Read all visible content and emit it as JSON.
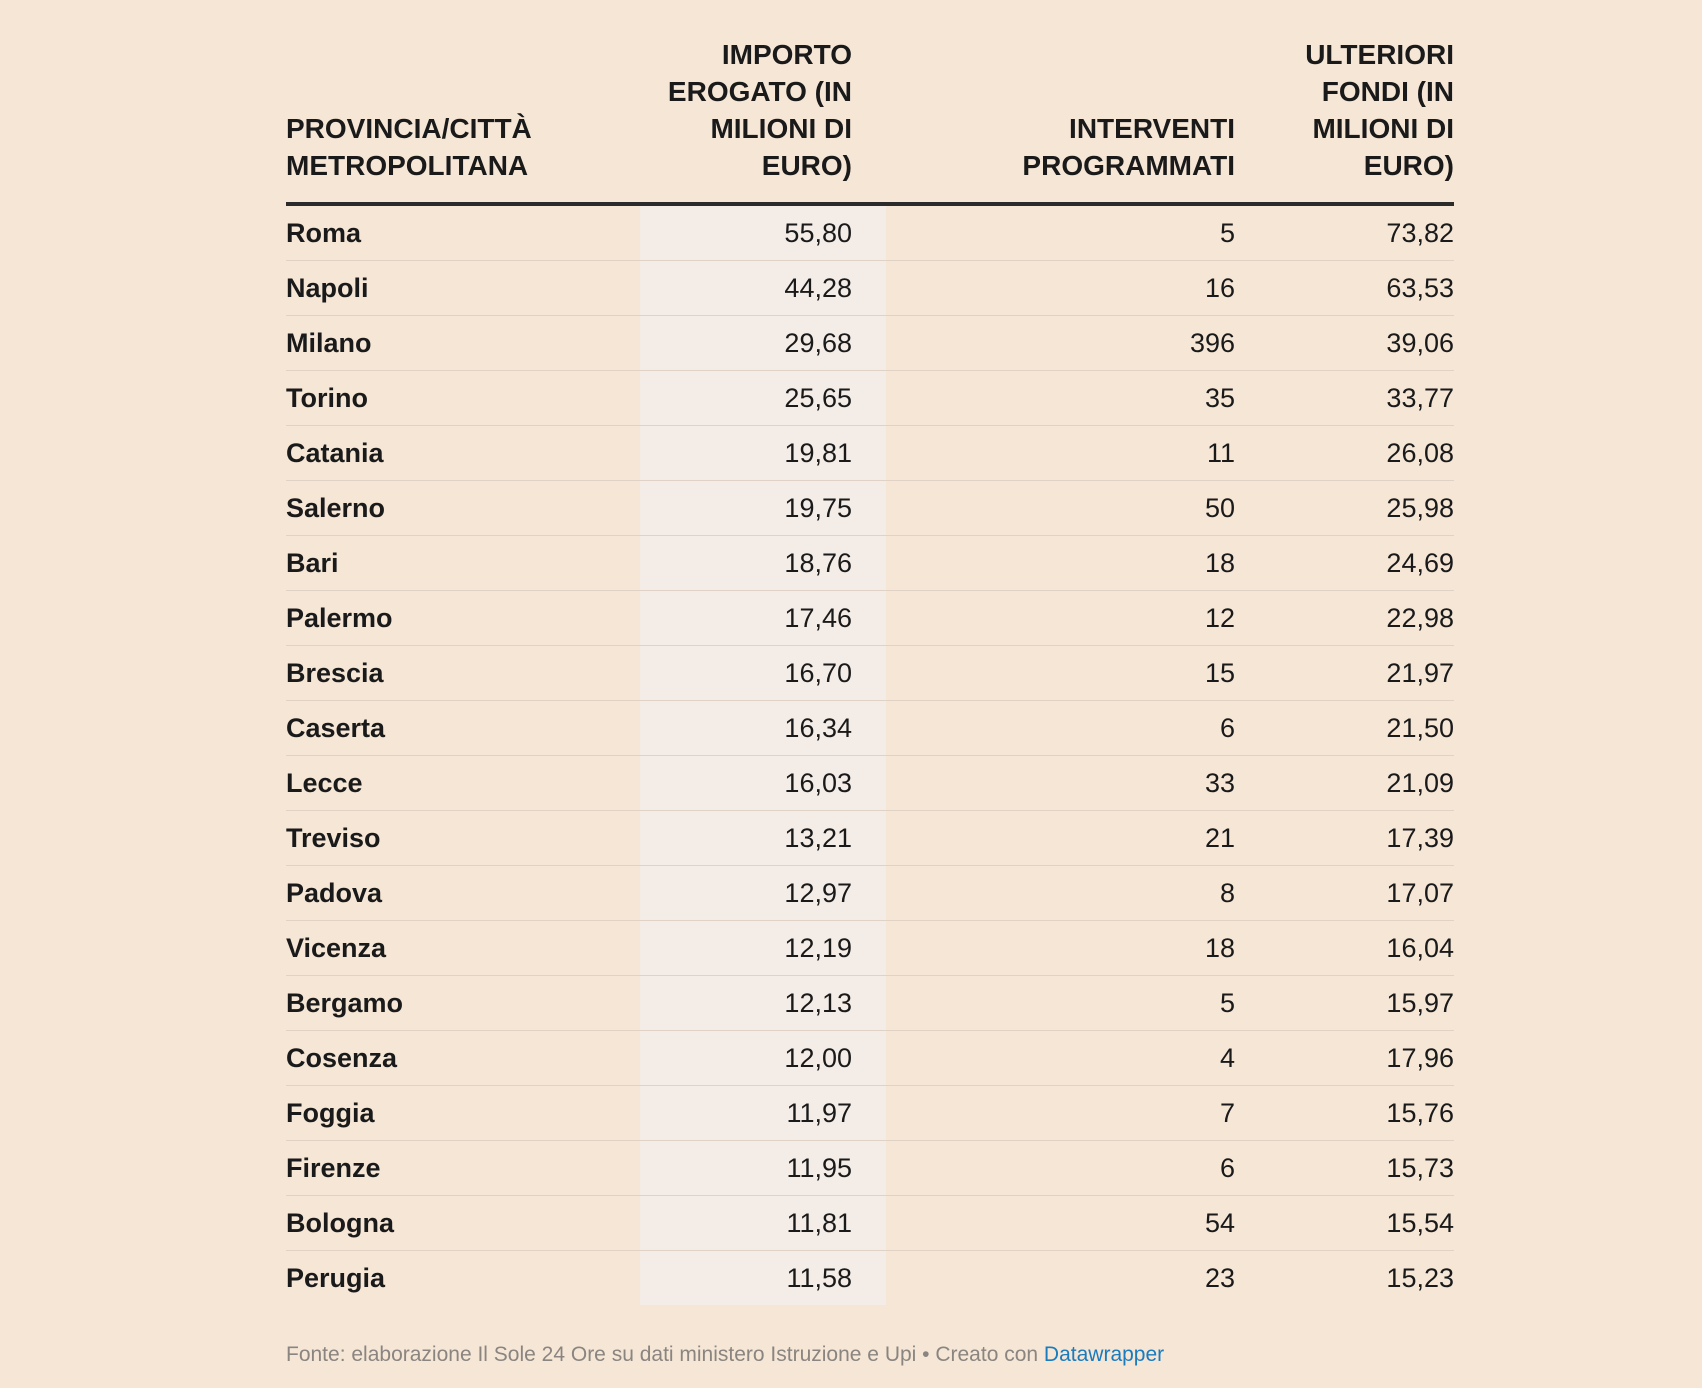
{
  "chart_data": {
    "type": "table",
    "columns": [
      "PROVINCIA/CITTÀ METROPOLITANA",
      "IMPORTO EROGATO (IN MILIONI DI EURO)",
      "INTERVENTI PROGRAMMATI",
      "ULTERIORI FONDI (IN MILIONI DI EURO)"
    ],
    "rows": [
      {
        "provincia": "Roma",
        "importo": "55,80",
        "interventi": "5",
        "fondi": "73,82"
      },
      {
        "provincia": "Napoli",
        "importo": "44,28",
        "interventi": "16",
        "fondi": "63,53"
      },
      {
        "provincia": "Milano",
        "importo": "29,68",
        "interventi": "396",
        "fondi": "39,06"
      },
      {
        "provincia": "Torino",
        "importo": "25,65",
        "interventi": "35",
        "fondi": "33,77"
      },
      {
        "provincia": "Catania",
        "importo": "19,81",
        "interventi": "11",
        "fondi": "26,08"
      },
      {
        "provincia": "Salerno",
        "importo": "19,75",
        "interventi": "50",
        "fondi": "25,98"
      },
      {
        "provincia": "Bari",
        "importo": "18,76",
        "interventi": "18",
        "fondi": "24,69"
      },
      {
        "provincia": "Palermo",
        "importo": "17,46",
        "interventi": "12",
        "fondi": "22,98"
      },
      {
        "provincia": "Brescia",
        "importo": "16,70",
        "interventi": "15",
        "fondi": "21,97"
      },
      {
        "provincia": "Caserta",
        "importo": "16,34",
        "interventi": "6",
        "fondi": "21,50"
      },
      {
        "provincia": "Lecce",
        "importo": "16,03",
        "interventi": "33",
        "fondi": "21,09"
      },
      {
        "provincia": "Treviso",
        "importo": "13,21",
        "interventi": "21",
        "fondi": "17,39"
      },
      {
        "provincia": "Padova",
        "importo": "12,97",
        "interventi": "8",
        "fondi": "17,07"
      },
      {
        "provincia": "Vicenza",
        "importo": "12,19",
        "interventi": "18",
        "fondi": "16,04"
      },
      {
        "provincia": "Bergamo",
        "importo": "12,13",
        "interventi": "5",
        "fondi": "15,97"
      },
      {
        "provincia": "Cosenza",
        "importo": "12,00",
        "interventi": "4",
        "fondi": "17,96"
      },
      {
        "provincia": "Foggia",
        "importo": "11,97",
        "interventi": "7",
        "fondi": "15,76"
      },
      {
        "provincia": "Firenze",
        "importo": "11,95",
        "interventi": "6",
        "fondi": "15,73"
      },
      {
        "provincia": "Bologna",
        "importo": "11,81",
        "interventi": "54",
        "fondi": "15,54"
      },
      {
        "provincia": "Perugia",
        "importo": "11,58",
        "interventi": "23",
        "fondi": "15,23"
      }
    ],
    "highlight_column": 1,
    "highlight_color": "#f4ece6"
  },
  "footer": {
    "text": "Fonte: elaborazione Il Sole 24 Ore su dati ministero Istruzione e Upi • Creato con ",
    "link_label": "Datawrapper",
    "link_color": "#1a7bbd"
  },
  "colors": {
    "background": "#f5e6d6",
    "text": "#1a1a1a"
  }
}
